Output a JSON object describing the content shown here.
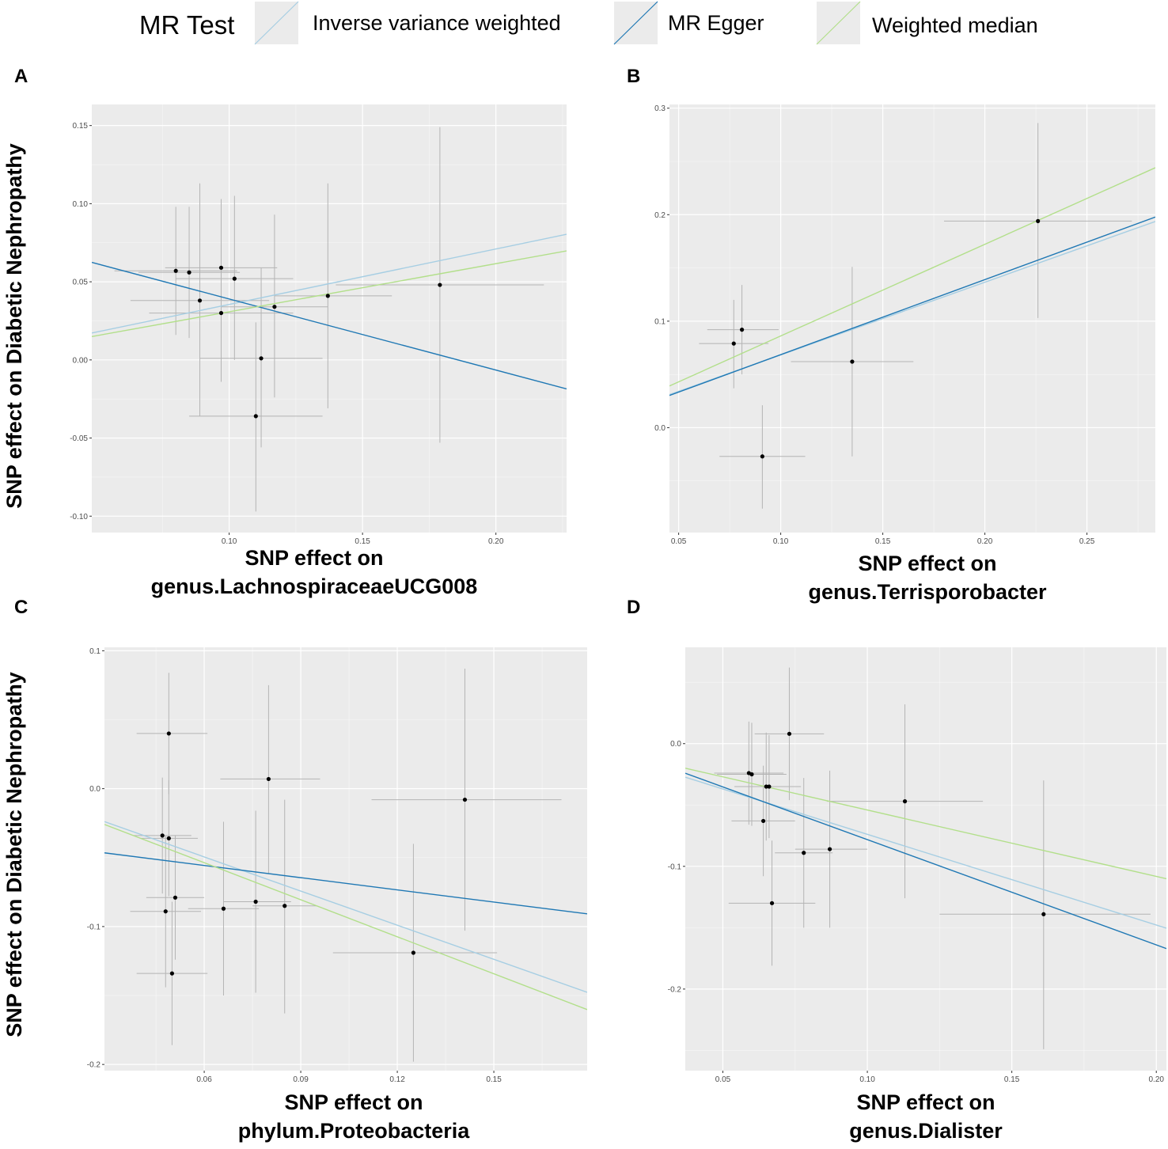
{
  "legend": {
    "title": "MR Test",
    "items": [
      {
        "label": "Inverse variance weighted",
        "color": "#a6cee3"
      },
      {
        "label": "MR Egger",
        "color": "#1f78b4"
      },
      {
        "label": "Weighted median",
        "color": "#b2df8a"
      }
    ]
  },
  "colors": {
    "panel_bg": "#ebebeb",
    "grid": "#ffffff",
    "errorbar": "#b4b4b4",
    "point": "#000000"
  },
  "y_axis_title": "SNP effect on Diabetic Nephropathy",
  "chart_data": [
    {
      "panel": "A",
      "type": "scatter",
      "xlabel": [
        "SNP effect on",
        "genus.LachnospiraceaeUCG008"
      ],
      "xlim": [
        0.0485,
        0.2265
      ],
      "ylim": [
        -0.1105,
        0.1635
      ],
      "xticks": [
        0.1,
        0.15,
        0.2
      ],
      "xtick_labels": [
        "0.10",
        "0.15",
        "0.20"
      ],
      "yticks": [
        -0.1,
        -0.05,
        0.0,
        0.05,
        0.1,
        0.15
      ],
      "ytick_labels": [
        "-0.10",
        "-0.05",
        "0.00",
        "0.05",
        "0.10",
        "0.15"
      ],
      "points": [
        {
          "x": 0.08,
          "y": 0.057,
          "xmin": 0.057,
          "xmax": 0.103,
          "ymin": 0.016,
          "ymax": 0.098
        },
        {
          "x": 0.085,
          "y": 0.056,
          "xmin": 0.066,
          "xmax": 0.104,
          "ymin": 0.014,
          "ymax": 0.098
        },
        {
          "x": 0.089,
          "y": 0.038,
          "xmin": 0.063,
          "xmax": 0.115,
          "ymin": -0.036,
          "ymax": 0.113
        },
        {
          "x": 0.097,
          "y": 0.059,
          "xmin": 0.076,
          "xmax": 0.118,
          "ymin": 0.014,
          "ymax": 0.103
        },
        {
          "x": 0.097,
          "y": 0.03,
          "xmin": 0.07,
          "xmax": 0.124,
          "ymin": -0.014,
          "ymax": 0.074
        },
        {
          "x": 0.102,
          "y": 0.052,
          "xmin": 0.08,
          "xmax": 0.124,
          "ymin": 0.0,
          "ymax": 0.105
        },
        {
          "x": 0.11,
          "y": -0.036,
          "xmin": 0.085,
          "xmax": 0.135,
          "ymin": -0.097,
          "ymax": 0.024
        },
        {
          "x": 0.112,
          "y": 0.001,
          "xmin": 0.089,
          "xmax": 0.135,
          "ymin": -0.056,
          "ymax": 0.059
        },
        {
          "x": 0.117,
          "y": 0.034,
          "xmin": 0.097,
          "xmax": 0.137,
          "ymin": -0.024,
          "ymax": 0.093
        },
        {
          "x": 0.137,
          "y": 0.041,
          "xmin": 0.117,
          "xmax": 0.161,
          "ymin": -0.031,
          "ymax": 0.113
        },
        {
          "x": 0.179,
          "y": 0.048,
          "xmin": 0.14,
          "xmax": 0.218,
          "ymin": -0.053,
          "ymax": 0.149
        }
      ],
      "lines": [
        {
          "method": "Inverse variance weighted",
          "intercept": 0.0,
          "slope": 0.355
        },
        {
          "method": "MR Egger",
          "intercept": 0.0845,
          "slope": -0.455
        },
        {
          "method": "Weighted median",
          "intercept": 0.0,
          "slope": 0.308
        }
      ]
    },
    {
      "panel": "B",
      "type": "scatter",
      "xlabel": [
        "SNP effect on",
        "genus.Terrisporobacter"
      ],
      "xlim": [
        0.0455,
        0.2835
      ],
      "ylim": [
        -0.0985,
        0.3035
      ],
      "xticks": [
        0.05,
        0.1,
        0.15,
        0.2,
        0.25
      ],
      "xtick_labels": [
        "0.05",
        "0.10",
        "0.15",
        "0.20",
        "0.25"
      ],
      "yticks": [
        0.0,
        0.1,
        0.2,
        0.3
      ],
      "ytick_labels": [
        "0.0",
        "0.1",
        "0.2",
        "0.3"
      ],
      "points": [
        {
          "x": 0.077,
          "y": 0.079,
          "xmin": 0.06,
          "xmax": 0.094,
          "ymin": 0.037,
          "ymax": 0.12
        },
        {
          "x": 0.081,
          "y": 0.092,
          "xmin": 0.064,
          "xmax": 0.099,
          "ymin": 0.05,
          "ymax": 0.134
        },
        {
          "x": 0.091,
          "y": -0.027,
          "xmin": 0.07,
          "xmax": 0.112,
          "ymin": -0.076,
          "ymax": 0.021
        },
        {
          "x": 0.135,
          "y": 0.062,
          "xmin": 0.105,
          "xmax": 0.165,
          "ymin": -0.027,
          "ymax": 0.151
        },
        {
          "x": 0.226,
          "y": 0.194,
          "xmin": 0.18,
          "xmax": 0.272,
          "ymin": 0.103,
          "ymax": 0.286
        }
      ],
      "lines": [
        {
          "method": "Inverse variance weighted",
          "intercept": 0.0,
          "slope": 0.683
        },
        {
          "method": "MR Egger",
          "intercept": -0.0018,
          "slope": 0.704
        },
        {
          "method": "Weighted median",
          "intercept": 0.0,
          "slope": 0.861
        }
      ]
    },
    {
      "panel": "C",
      "type": "scatter",
      "xlabel": [
        "SNP effect on",
        "phylum.Proteobacteria"
      ],
      "xlim": [
        0.029,
        0.179
      ],
      "ylim": [
        -0.2045,
        0.1025
      ],
      "xticks": [
        0.06,
        0.09,
        0.12,
        0.15
      ],
      "xtick_labels": [
        "0.06",
        "0.09",
        "0.12",
        "0.15"
      ],
      "yticks": [
        -0.2,
        -0.1,
        0.0,
        0.1
      ],
      "ytick_labels": [
        "-0.2",
        "-0.1",
        "0.0",
        "0.1"
      ],
      "points": [
        {
          "x": 0.047,
          "y": -0.034,
          "xmin": 0.038,
          "xmax": 0.056,
          "ymin": -0.076,
          "ymax": 0.008
        },
        {
          "x": 0.048,
          "y": -0.089,
          "xmin": 0.037,
          "xmax": 0.059,
          "ymin": -0.144,
          "ymax": -0.034
        },
        {
          "x": 0.049,
          "y": 0.04,
          "xmin": 0.039,
          "xmax": 0.061,
          "ymin": -0.004,
          "ymax": 0.084
        },
        {
          "x": 0.049,
          "y": -0.036,
          "xmin": 0.04,
          "xmax": 0.058,
          "ymin": -0.078,
          "ymax": 0.006
        },
        {
          "x": 0.05,
          "y": -0.134,
          "xmin": 0.039,
          "xmax": 0.061,
          "ymin": -0.186,
          "ymax": -0.082
        },
        {
          "x": 0.051,
          "y": -0.079,
          "xmin": 0.042,
          "xmax": 0.06,
          "ymin": -0.124,
          "ymax": -0.034
        },
        {
          "x": 0.066,
          "y": -0.087,
          "xmin": 0.055,
          "xmax": 0.077,
          "ymin": -0.15,
          "ymax": -0.024
        },
        {
          "x": 0.076,
          "y": -0.082,
          "xmin": 0.066,
          "xmax": 0.087,
          "ymin": -0.148,
          "ymax": -0.016
        },
        {
          "x": 0.08,
          "y": 0.007,
          "xmin": 0.065,
          "xmax": 0.096,
          "ymin": -0.062,
          "ymax": 0.075
        },
        {
          "x": 0.085,
          "y": -0.085,
          "xmin": 0.075,
          "xmax": 0.095,
          "ymin": -0.163,
          "ymax": -0.008
        },
        {
          "x": 0.125,
          "y": -0.119,
          "xmin": 0.1,
          "xmax": 0.151,
          "ymin": -0.198,
          "ymax": -0.04
        },
        {
          "x": 0.141,
          "y": -0.008,
          "xmin": 0.112,
          "xmax": 0.171,
          "ymin": -0.103,
          "ymax": 0.087
        }
      ],
      "lines": [
        {
          "method": "Inverse variance weighted",
          "intercept": 0.0,
          "slope": -0.825
        },
        {
          "method": "MR Egger",
          "intercept": -0.038,
          "slope": -0.295
        },
        {
          "method": "Weighted median",
          "intercept": 0.0,
          "slope": -0.895
        }
      ]
    },
    {
      "panel": "D",
      "type": "scatter",
      "xlabel": [
        "SNP effect on",
        "genus.Dialister"
      ],
      "xlim": [
        0.037,
        0.2035
      ],
      "ylim": [
        -0.2665,
        0.0785
      ],
      "xticks": [
        0.05,
        0.1,
        0.15,
        0.2
      ],
      "xtick_labels": [
        "0.05",
        "0.10",
        "0.15",
        "0.20"
      ],
      "yticks": [
        -0.2,
        -0.1,
        0.0
      ],
      "ytick_labels": [
        "-0.2",
        "-0.1",
        "0.0"
      ],
      "points": [
        {
          "x": 0.059,
          "y": -0.024,
          "xmin": 0.047,
          "xmax": 0.071,
          "ymin": -0.066,
          "ymax": 0.018
        },
        {
          "x": 0.06,
          "y": -0.025,
          "xmin": 0.048,
          "xmax": 0.072,
          "ymin": -0.067,
          "ymax": 0.017
        },
        {
          "x": 0.064,
          "y": -0.063,
          "xmin": 0.053,
          "xmax": 0.075,
          "ymin": -0.108,
          "ymax": -0.018
        },
        {
          "x": 0.065,
          "y": -0.035,
          "xmin": 0.054,
          "xmax": 0.077,
          "ymin": -0.079,
          "ymax": 0.009
        },
        {
          "x": 0.066,
          "y": -0.035,
          "xmin": 0.056,
          "xmax": 0.077,
          "ymin": -0.077,
          "ymax": 0.007
        },
        {
          "x": 0.067,
          "y": -0.13,
          "xmin": 0.052,
          "xmax": 0.082,
          "ymin": -0.181,
          "ymax": -0.079
        },
        {
          "x": 0.073,
          "y": 0.008,
          "xmin": 0.061,
          "xmax": 0.085,
          "ymin": -0.046,
          "ymax": 0.062
        },
        {
          "x": 0.078,
          "y": -0.089,
          "xmin": 0.068,
          "xmax": 0.088,
          "ymin": -0.15,
          "ymax": -0.028
        },
        {
          "x": 0.087,
          "y": -0.086,
          "xmin": 0.075,
          "xmax": 0.1,
          "ymin": -0.15,
          "ymax": -0.022
        },
        {
          "x": 0.113,
          "y": -0.047,
          "xmin": 0.086,
          "xmax": 0.14,
          "ymin": -0.126,
          "ymax": 0.032
        },
        {
          "x": 0.161,
          "y": -0.139,
          "xmin": 0.125,
          "xmax": 0.198,
          "ymin": -0.249,
          "ymax": -0.03
        }
      ],
      "lines": [
        {
          "method": "Inverse variance weighted",
          "intercept": 0.0,
          "slope": -0.739
        },
        {
          "method": "MR Egger",
          "intercept": 0.0076,
          "slope": -0.858
        },
        {
          "method": "Weighted median",
          "intercept": 0.0,
          "slope": -0.541
        }
      ]
    }
  ]
}
